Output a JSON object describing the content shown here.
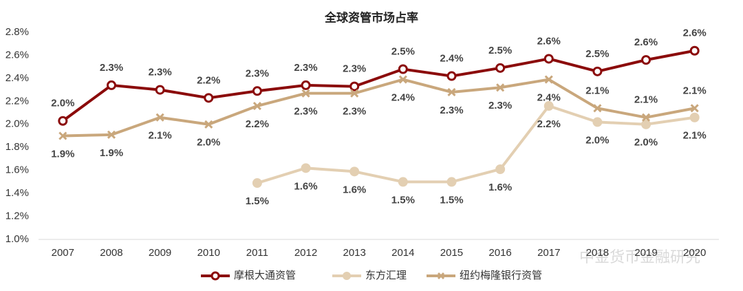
{
  "chart_data": {
    "type": "line",
    "title": "全球资管市场占率",
    "categories": [
      "2007",
      "2008",
      "2009",
      "2010",
      "2011",
      "2012",
      "2013",
      "2014",
      "2015",
      "2016",
      "2017",
      "2018",
      "2019",
      "2020"
    ],
    "ylim": [
      1.0,
      2.8
    ],
    "yticks": [
      {
        "value": 1.0,
        "label": "1.0%"
      },
      {
        "value": 1.2,
        "label": "1.2%"
      },
      {
        "value": 1.4,
        "label": "1.4%"
      },
      {
        "value": 1.6,
        "label": "1.6%"
      },
      {
        "value": 1.8,
        "label": "1.8%"
      },
      {
        "value": 2.0,
        "label": "2.0%"
      },
      {
        "value": 2.2,
        "label": "2.2%"
      },
      {
        "value": 2.4,
        "label": "2.4%"
      },
      {
        "value": 2.6,
        "label": "2.6%"
      },
      {
        "value": 2.8,
        "label": "2.8%"
      }
    ],
    "grid": false,
    "series": [
      {
        "name": "摩根大通资管",
        "color": "#8b0a0a",
        "marker": "circle",
        "values": [
          2.03,
          2.34,
          2.3,
          2.23,
          2.29,
          2.34,
          2.33,
          2.48,
          2.42,
          2.49,
          2.57,
          2.46,
          2.56,
          2.64
        ],
        "value_labels": [
          "2.0%",
          "2.3%",
          "2.3%",
          "2.2%",
          "2.3%",
          "2.3%",
          "2.3%",
          "2.5%",
          "2.4%",
          "2.5%",
          "2.6%",
          "2.5%",
          "2.6%",
          "2.6%"
        ]
      },
      {
        "name": "东方汇理",
        "color": "#e3cfb2",
        "marker": "dot",
        "values": [
          null,
          null,
          null,
          null,
          1.49,
          1.62,
          1.59,
          1.5,
          1.5,
          1.61,
          2.16,
          2.02,
          2.0,
          2.06
        ],
        "value_labels": [
          null,
          null,
          null,
          null,
          "1.5%",
          "1.6%",
          "1.6%",
          "1.5%",
          "1.5%",
          "1.6%",
          "2.2%",
          "2.0%",
          "2.0%",
          "2.1%"
        ]
      },
      {
        "name": "纽约梅隆银行资管",
        "color": "#c9a77c",
        "marker": "x",
        "values": [
          1.9,
          1.91,
          2.06,
          2.0,
          2.16,
          2.27,
          2.27,
          2.39,
          2.28,
          2.32,
          2.39,
          2.14,
          2.06,
          2.14
        ],
        "value_labels": [
          "1.9%",
          "1.9%",
          "2.1%",
          "2.0%",
          "2.2%",
          "2.3%",
          "2.3%",
          "2.4%",
          "2.3%",
          "2.3%",
          "2.4%",
          "2.1%",
          "2.1%",
          "2.1%"
        ]
      }
    ],
    "watermark": "中金货币金融研究"
  }
}
